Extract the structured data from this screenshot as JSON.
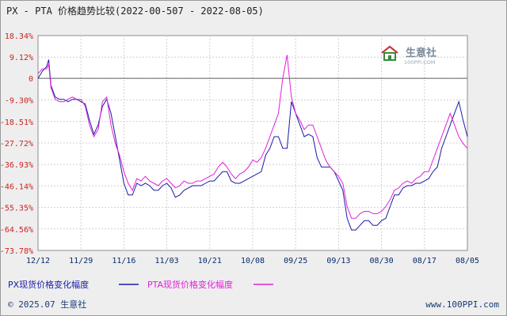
{
  "header": {
    "title": "PX - PTA 价格趋势比较(2022-00-507 - 2022-08-05)"
  },
  "logo": {
    "text_cn": "生意社",
    "text_en": "100PPI.COM"
  },
  "footer": {
    "copyright": "© 2025.07 生意社",
    "site": "www.100PPI.com"
  },
  "colors": {
    "px": "#1a1aa6",
    "pta": "#e020d8",
    "y_label": "#cc2222",
    "frame_bg": "#eeeeee",
    "axis_text": "#0a2a6a"
  },
  "chart_data": {
    "type": "line",
    "title": "PX - PTA 价格趋势比较(2022-00-507 - 2022-08-05)",
    "xlabel": "",
    "ylabel": "",
    "ylim": [
      -73.78,
      18.34
    ],
    "yticks": [
      "18.34%",
      "9.12%",
      "0",
      "-9.30%",
      "-18.51%",
      "-27.72%",
      "-36.93%",
      "-46.14%",
      "-55.35%",
      "-64.56%",
      "-73.78%"
    ],
    "ytick_values": [
      18.34,
      9.12,
      0,
      -9.3,
      -18.51,
      -27.72,
      -36.93,
      -46.14,
      -55.35,
      -64.56,
      -73.78
    ],
    "xticks": [
      "12/12",
      "11/29",
      "11/16",
      "11/03",
      "10/21",
      "10/08",
      "09/25",
      "09/13",
      "08/30",
      "08/17",
      "08/05"
    ],
    "xlim": [
      0,
      100
    ],
    "grid": true,
    "legend_position": "bottom-left",
    "series": [
      {
        "name": "PX现货价格变化幅度",
        "color": "#1a1aa6",
        "x": [
          0,
          1,
          2,
          2.5,
          3,
          4,
          5,
          6,
          7,
          8,
          9,
          10,
          11,
          12,
          13,
          14,
          15,
          16,
          17,
          18,
          19,
          20,
          21,
          22,
          23,
          24,
          25,
          26,
          27,
          28,
          29,
          30,
          31,
          32,
          33,
          34,
          35,
          36,
          37,
          38,
          39,
          40,
          41,
          42,
          43,
          44,
          45,
          46,
          47,
          48,
          49,
          50,
          51,
          52,
          53,
          54,
          55,
          56,
          57,
          58,
          59,
          60,
          61,
          62,
          63,
          64,
          65,
          66,
          67,
          68,
          69,
          70,
          71,
          72,
          73,
          74,
          75,
          76,
          77,
          78,
          79,
          80,
          81,
          82,
          83,
          84,
          85,
          86,
          87,
          88,
          89,
          90,
          91,
          92,
          93,
          94,
          95,
          96,
          97,
          98,
          99,
          100
        ],
        "y": [
          0,
          3,
          5,
          8,
          -3,
          -8,
          -9,
          -9,
          -10,
          -9,
          -9,
          -10,
          -11,
          -18,
          -24,
          -20,
          -12,
          -9,
          -15,
          -25,
          -35,
          -45,
          -50,
          -50,
          -45,
          -46,
          -45,
          -46,
          -48,
          -48,
          -46,
          -45,
          -47,
          -51,
          -50,
          -48,
          -47,
          -46,
          -46,
          -46,
          -45,
          -44,
          -44,
          -42,
          -40,
          -40,
          -44,
          -45,
          -45,
          -44,
          -43,
          -42,
          -41,
          -40,
          -33,
          -30,
          -25,
          -25,
          -30,
          -30,
          -10,
          -15,
          -20,
          -25,
          -24,
          -25,
          -34,
          -38,
          -38,
          -38,
          -40,
          -44,
          -48,
          -60,
          -65,
          -65,
          -63,
          -61,
          -61,
          -63,
          -63,
          -61,
          -60,
          -55,
          -50,
          -50,
          -47,
          -46,
          -46,
          -45,
          -45,
          -44,
          -43,
          -40,
          -38,
          -30,
          -25,
          -20,
          -15,
          -10,
          -18,
          -25
        ]
      },
      {
        "name": "PTA现货价格变化幅度",
        "color": "#e020d8",
        "x": [
          0,
          1,
          2,
          2.5,
          3,
          4,
          5,
          6,
          7,
          8,
          9,
          10,
          11,
          12,
          13,
          14,
          15,
          16,
          17,
          18,
          19,
          20,
          21,
          22,
          23,
          24,
          25,
          26,
          27,
          28,
          29,
          30,
          31,
          32,
          33,
          34,
          35,
          36,
          37,
          38,
          39,
          40,
          41,
          42,
          43,
          44,
          45,
          46,
          47,
          48,
          49,
          50,
          51,
          52,
          53,
          54,
          55,
          56,
          57,
          58,
          59,
          60,
          61,
          62,
          63,
          64,
          65,
          66,
          67,
          68,
          69,
          70,
          71,
          72,
          73,
          74,
          75,
          76,
          77,
          78,
          79,
          80,
          81,
          82,
          83,
          84,
          85,
          86,
          87,
          88,
          89,
          90,
          91,
          92,
          93,
          94,
          95,
          96,
          97,
          98,
          99,
          100
        ],
        "y": [
          2,
          4,
          4,
          6,
          -4,
          -9,
          -10,
          -10,
          -9,
          -8,
          -9,
          -9,
          -12,
          -20,
          -25,
          -22,
          -10,
          -8,
          -20,
          -28,
          -33,
          -40,
          -45,
          -48,
          -43,
          -44,
          -42,
          -44,
          -45,
          -46,
          -44,
          -43,
          -45,
          -47,
          -46,
          -44,
          -45,
          -45,
          -44,
          -44,
          -43,
          -42,
          -41,
          -38,
          -36,
          -38,
          -41,
          -43,
          -41,
          -40,
          -38,
          -35,
          -36,
          -34,
          -30,
          -25,
          -20,
          -15,
          0,
          10,
          -8,
          -15,
          -18,
          -22,
          -20,
          -20,
          -25,
          -30,
          -35,
          -38,
          -40,
          -42,
          -45,
          -55,
          -60,
          -60,
          -58,
          -57,
          -57,
          -58,
          -58,
          -57,
          -55,
          -52,
          -48,
          -47,
          -45,
          -44,
          -45,
          -43,
          -42,
          -40,
          -40,
          -35,
          -30,
          -25,
          -20,
          -15,
          -20,
          -25,
          -28,
          -30
        ]
      }
    ]
  }
}
